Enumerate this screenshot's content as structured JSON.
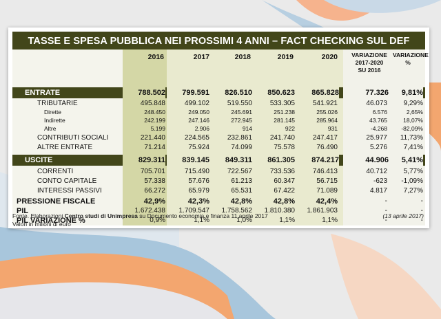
{
  "title": "TASSE E SPESA PUBBLICA NEI PROSSIMI 4 ANNI – FACT CHECKING SUL DEF",
  "headers": [
    "2016",
    "2017",
    "2018",
    "2019",
    "2020"
  ],
  "var_header_lines": [
    "VARIAZIONE",
    "2017-2020",
    "SU 2016"
  ],
  "var_pct_header_lines": [
    "VARIAZIONE",
    "%"
  ],
  "rows": {
    "entrate": {
      "label": "ENTRATE",
      "values": [
        "788.502",
        "799.591",
        "826.510",
        "850.623",
        "865.828"
      ],
      "var": "77.326",
      "pct": "9,81%"
    },
    "tributarie": {
      "label": "TRIBUTARIE",
      "values": [
        "495.848",
        "499.102",
        "519.550",
        "533.305",
        "541.921"
      ],
      "var": "46.073",
      "pct": "9,29%"
    },
    "dirette": {
      "label": "Dirette",
      "values": [
        "248.450",
        "249.050",
        "245.691",
        "251.238",
        "255.026"
      ],
      "var": "6.576",
      "pct": "2,65%"
    },
    "indirette": {
      "label": "Indirette",
      "values": [
        "242.199",
        "247.146",
        "272.945",
        "281.145",
        "285.964"
      ],
      "var": "43.765",
      "pct": "18,07%"
    },
    "altre": {
      "label": "Altre",
      "values": [
        "5.199",
        "2.906",
        "914",
        "922",
        "931"
      ],
      "var": "-4.268",
      "pct": "-82,09%"
    },
    "contributi": {
      "label": "CONTRIBUTI SOCIALI",
      "values": [
        "221.440",
        "224.565",
        "232.861",
        "241.740",
        "247.417"
      ],
      "var": "25.977",
      "pct": "11,73%"
    },
    "altre_entrate": {
      "label": "ALTRE ENTRATE",
      "values": [
        "71.214",
        "75.924",
        "74.099",
        "75.578",
        "76.490"
      ],
      "var": "5.276",
      "pct": "7,41%"
    },
    "uscite": {
      "label": "USCITE",
      "values": [
        "829.311",
        "839.145",
        "849.311",
        "861.305",
        "874.217"
      ],
      "var": "44.906",
      "pct": "5,41%"
    },
    "correnti": {
      "label": "CORRENTI",
      "values": [
        "705.701",
        "715.490",
        "722.567",
        "733.536",
        "746.413"
      ],
      "var": "40.712",
      "pct": "5,77%"
    },
    "conto_capitale": {
      "label": "CONTO CAPITALE",
      "values": [
        "57.338",
        "57.676",
        "61.213",
        "60.347",
        "56.715"
      ],
      "var": "-623",
      "pct": "-1,09%"
    },
    "interessi": {
      "label": "INTERESSI PASSIVI",
      "values": [
        "66.272",
        "65.979",
        "65.531",
        "67.422",
        "71.089"
      ],
      "var": "4.817",
      "pct": "7,27%"
    },
    "pressione": {
      "label": "PRESSIONE FISCALE",
      "values": [
        "42,9%",
        "42,3%",
        "42,8%",
        "42,8%",
        "42,4%"
      ],
      "var": "-",
      "pct": "-"
    },
    "pil": {
      "label": "PIL",
      "values": [
        "1.672.438",
        "1.709.547",
        "1.758.562",
        "1.810.380",
        "1.861.903"
      ],
      "var": "-",
      "pct": "-"
    },
    "pil_var": {
      "label": "PIL VARIAZIONE %",
      "values": [
        "0,9%",
        "1,1%",
        "1,0%",
        "1,1%",
        "1,1%"
      ],
      "var": "-",
      "pct": "-"
    }
  },
  "footer": {
    "prefix": "Fonte. Elaborazioni ",
    "source": "Centro studi di Unimpresa",
    "suffix": " su Documento economia e finanza 11 aprile 2017",
    "date": "(13 aprile 2017)",
    "units": "Valori in milioni di euro"
  },
  "colors": {
    "olive_dark": "#42461a",
    "col_2016": "#d4d7a6",
    "col_other": "#e9eacf",
    "col_var": "#f2f2ea",
    "bg": "#eaeaea"
  }
}
